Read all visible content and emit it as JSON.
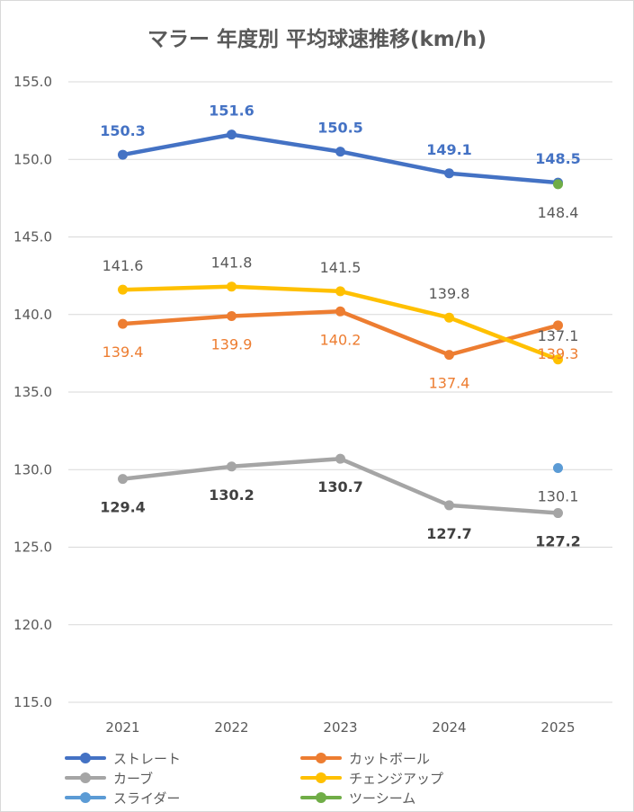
{
  "chart_data": {
    "type": "line",
    "title": "マラー 年度別 平均球速推移(km/h)",
    "categories": [
      "2021",
      "2022",
      "2023",
      "2024",
      "2025"
    ],
    "yticks": [
      "115.0",
      "120.0",
      "125.0",
      "130.0",
      "135.0",
      "140.0",
      "145.0",
      "150.0",
      "155.0"
    ],
    "ylim": [
      115,
      155
    ],
    "grid": true,
    "legend_position": "bottom",
    "series": [
      {
        "name": "ストレート",
        "color": "#4472c4",
        "values": [
          150.3,
          151.6,
          150.5,
          149.1,
          148.5
        ],
        "labels": [
          "150.3",
          "151.6",
          "150.5",
          "149.1",
          "148.5"
        ],
        "label_position": "above"
      },
      {
        "name": "カットボール",
        "color": "#ed7d31",
        "values": [
          139.4,
          139.9,
          140.2,
          137.4,
          139.3
        ],
        "labels": [
          "139.4",
          "139.9",
          "140.2",
          "137.4",
          "139.3"
        ],
        "label_position": "below"
      },
      {
        "name": "カーブ",
        "color": "#a5a5a5",
        "values": [
          129.4,
          130.2,
          130.7,
          127.7,
          127.2
        ],
        "labels": [
          "129.4",
          "130.2",
          "130.7",
          "127.7",
          "127.2"
        ],
        "label_position": "below"
      },
      {
        "name": "チェンジアップ",
        "color": "#ffc000",
        "values": [
          141.6,
          141.8,
          141.5,
          139.8,
          137.1
        ],
        "labels": [
          "141.6",
          "141.8",
          "141.5",
          "139.8",
          "137.1"
        ],
        "label_position": "above"
      },
      {
        "name": "スライダー",
        "color": "#5b9bd5",
        "values": [
          null,
          null,
          null,
          null,
          130.1
        ],
        "labels": [
          "",
          "",
          "",
          "",
          "130.1"
        ],
        "label_position": "below"
      },
      {
        "name": "ツーシーム",
        "color": "#70ad47",
        "values": [
          null,
          null,
          null,
          null,
          148.4
        ],
        "labels": [
          "",
          "",
          "",
          "",
          "148.4"
        ],
        "label_position": "below"
      }
    ]
  }
}
